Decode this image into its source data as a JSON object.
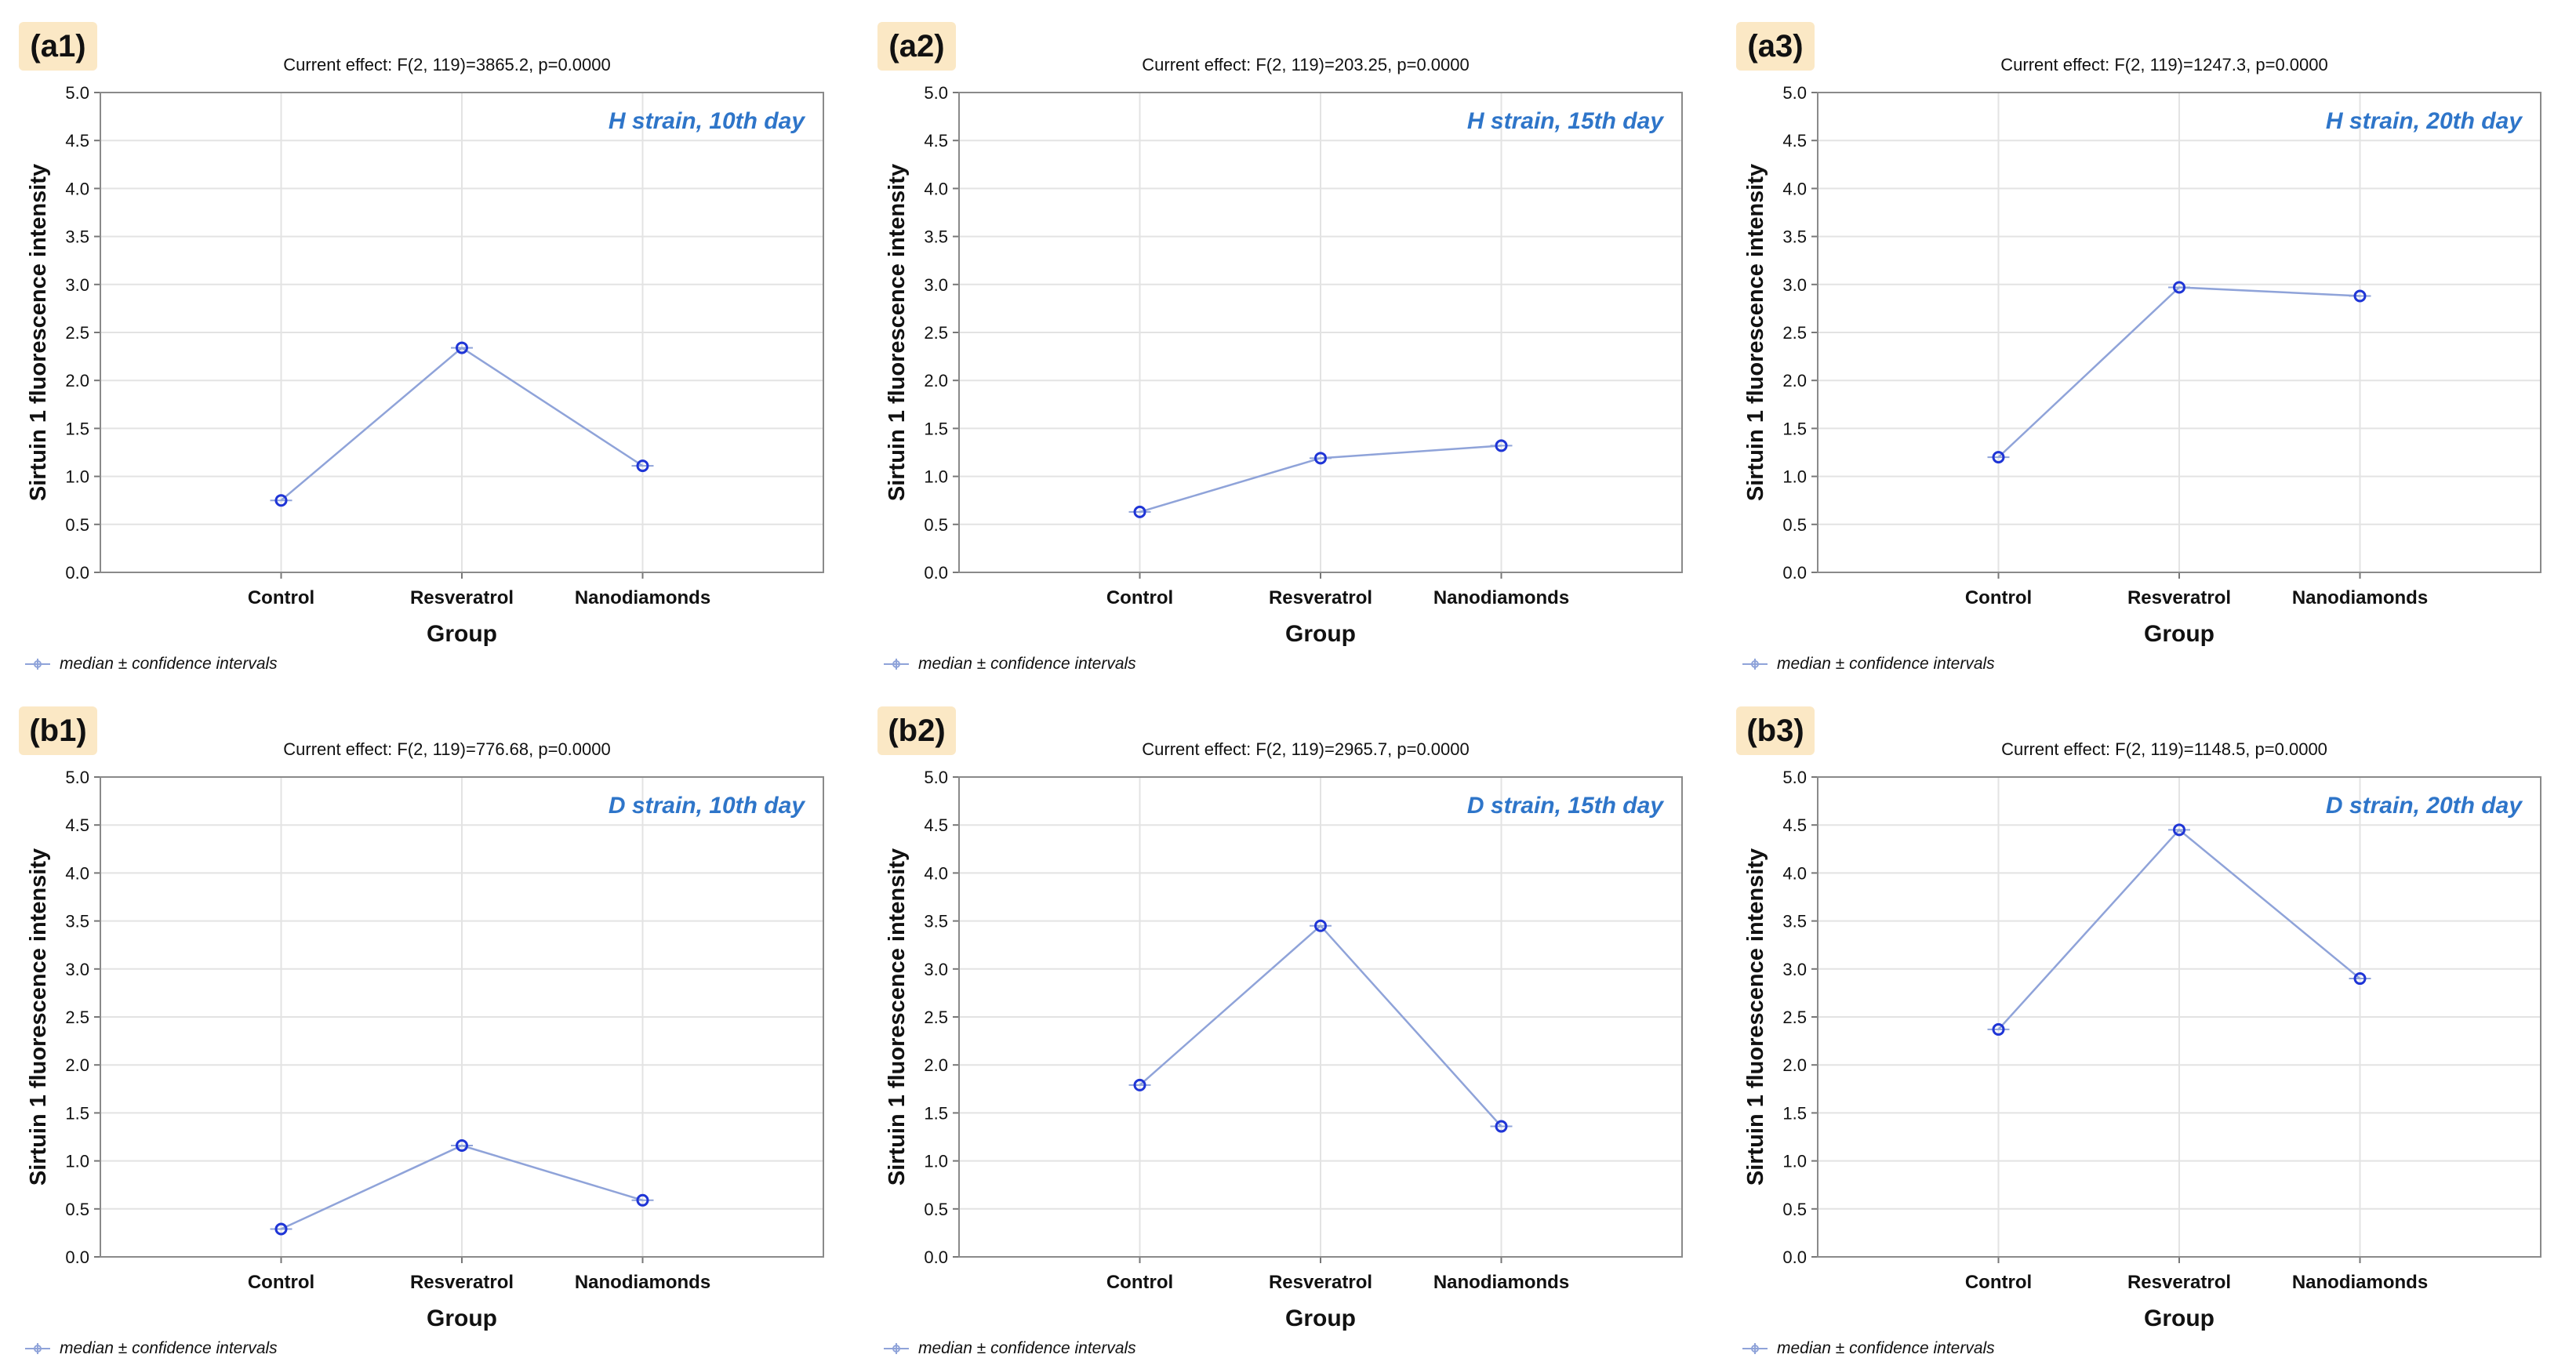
{
  "xlabel": "Group",
  "ylabel": "Sirtuin 1 fluorescence intensity",
  "legend_label": "median ± confidence intervals",
  "colors": {
    "line": "#8fa3d9",
    "marker": "#1f35d6",
    "title": "#2e75c9",
    "tag_bg": "#fbe8c5"
  },
  "panels": [
    {
      "tag": "(a1)",
      "effect": "Current effect: F(2, 119)=3865.2, p=0.0000"
    },
    {
      "tag": "(a2)",
      "effect": "Current effect: F(2, 119)=203.25, p=0.0000"
    },
    {
      "tag": "(a3)",
      "effect": "Current effect: F(2, 119)=1247.3, p=0.0000"
    },
    {
      "tag": "(b1)",
      "effect": "Current effect: F(2, 119)=776.68, p=0.0000"
    },
    {
      "tag": "(b2)",
      "effect": "Current effect: F(2, 119)=2965.7, p=0.0000"
    },
    {
      "tag": "(b3)",
      "effect": "Current effect: F(2, 119)=1148.5, p=0.0000"
    }
  ],
  "chart_data": [
    {
      "type": "line",
      "title": "H strain, 10th day",
      "categories": [
        "Control",
        "Resveratrol",
        "Nanodiamonds"
      ],
      "values": [
        0.75,
        2.34,
        1.11
      ],
      "xlabel": "Group",
      "ylabel": "Sirtuin 1 fluorescence intensity",
      "ylim": [
        0,
        5
      ],
      "yticks": [
        "0.0",
        "0.5",
        "1.0",
        "1.5",
        "2.0",
        "2.5",
        "3.0",
        "3.5",
        "4.0",
        "4.5",
        "5.0"
      ]
    },
    {
      "type": "line",
      "title": "H strain, 15th day",
      "categories": [
        "Control",
        "Resveratrol",
        "Nanodiamonds"
      ],
      "values": [
        0.63,
        1.19,
        1.32
      ],
      "xlabel": "Group",
      "ylabel": "Sirtuin 1 fluorescence intensity",
      "ylim": [
        0,
        5
      ],
      "yticks": [
        "0.0",
        "0.5",
        "1.0",
        "1.5",
        "2.0",
        "2.5",
        "3.0",
        "3.5",
        "4.0",
        "4.5",
        "5.0"
      ]
    },
    {
      "type": "line",
      "title": "H strain, 20th day",
      "categories": [
        "Control",
        "Resveratrol",
        "Nanodiamonds"
      ],
      "values": [
        1.2,
        2.97,
        2.88
      ],
      "xlabel": "Group",
      "ylabel": "Sirtuin 1 fluorescence intensity",
      "ylim": [
        0,
        5
      ],
      "yticks": [
        "0.0",
        "0.5",
        "1.0",
        "1.5",
        "2.0",
        "2.5",
        "3.0",
        "3.5",
        "4.0",
        "4.5",
        "5.0"
      ]
    },
    {
      "type": "line",
      "title": "D strain, 10th day",
      "categories": [
        "Control",
        "Resveratrol",
        "Nanodiamonds"
      ],
      "values": [
        0.29,
        1.16,
        0.59
      ],
      "xlabel": "Group",
      "ylabel": "Sirtuin 1 fluorescence intensity",
      "ylim": [
        0,
        5
      ],
      "yticks": [
        "0.0",
        "0.5",
        "1.0",
        "1.5",
        "2.0",
        "2.5",
        "3.0",
        "3.5",
        "4.0",
        "4.5",
        "5.0"
      ]
    },
    {
      "type": "line",
      "title": "D strain, 15th day",
      "categories": [
        "Control",
        "Resveratrol",
        "Nanodiamonds"
      ],
      "values": [
        1.79,
        3.45,
        1.36
      ],
      "xlabel": "Group",
      "ylabel": "Sirtuin 1 fluorescence intensity",
      "ylim": [
        0,
        5
      ],
      "yticks": [
        "0.0",
        "0.5",
        "1.0",
        "1.5",
        "2.0",
        "2.5",
        "3.0",
        "3.5",
        "4.0",
        "4.5",
        "5.0"
      ]
    },
    {
      "type": "line",
      "title": "D strain, 20th day",
      "categories": [
        "Control",
        "Resveratrol",
        "Nanodiamonds"
      ],
      "values": [
        2.37,
        4.45,
        2.9
      ],
      "xlabel": "Group",
      "ylabel": "Sirtuin 1 fluorescence intensity",
      "ylim": [
        0,
        5
      ],
      "yticks": [
        "0.0",
        "0.5",
        "1.0",
        "1.5",
        "2.0",
        "2.5",
        "3.0",
        "3.5",
        "4.0",
        "4.5",
        "5.0"
      ]
    }
  ]
}
